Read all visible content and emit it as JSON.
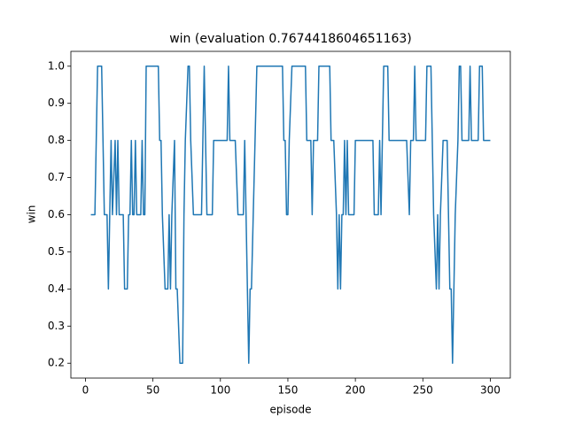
{
  "chart_data": {
    "type": "line",
    "title": "win (evaluation 0.7674418604651163)",
    "xlabel": "episode",
    "ylabel": "win",
    "color": "#1f77b4",
    "x": [
      4,
      7,
      8,
      9,
      12,
      13,
      14,
      16,
      17,
      18,
      19,
      20,
      22,
      23,
      24,
      25,
      26,
      28,
      29,
      31,
      32,
      33,
      34,
      35,
      36,
      37,
      38,
      41,
      42,
      43,
      44,
      45,
      54,
      55,
      56,
      57,
      59,
      61,
      62,
      63,
      64,
      66,
      67,
      68,
      70,
      72,
      73,
      74,
      76,
      77,
      78,
      80,
      86,
      87,
      88,
      89,
      90,
      94,
      95,
      105,
      106,
      107,
      111,
      113,
      117,
      118,
      119,
      121,
      122,
      123,
      127,
      146,
      147,
      148,
      149,
      150,
      151,
      153,
      163,
      164,
      167,
      168,
      169,
      172,
      173,
      181,
      182,
      184,
      186,
      187,
      188,
      189,
      190,
      191,
      192,
      193,
      194,
      195,
      199,
      200,
      213,
      214,
      217,
      218,
      219,
      220,
      221,
      224,
      225,
      238,
      240,
      241,
      243,
      244,
      245,
      252,
      253,
      256,
      257,
      258,
      260,
      261,
      262,
      263,
      265,
      268,
      270,
      271,
      272,
      274,
      276,
      277,
      278,
      279,
      284,
      285,
      286,
      291,
      292,
      294,
      295,
      300
    ],
    "values": [
      0.6,
      0.6,
      0.8,
      1,
      1,
      0.8,
      0.6,
      0.6,
      0.4,
      0.6,
      0.8,
      0.6,
      0.8,
      0.6,
      0.8,
      0.6,
      0.6,
      0.6,
      0.4,
      0.4,
      0.6,
      0.6,
      0.8,
      0.6,
      0.6,
      0.8,
      0.6,
      0.6,
      0.8,
      0.6,
      0.6,
      1,
      1,
      0.8,
      0.8,
      0.6,
      0.4,
      0.4,
      0.6,
      0.4,
      0.6,
      0.8,
      0.4,
      0.4,
      0.2,
      0.2,
      0.6,
      0.8,
      1,
      1,
      0.8,
      0.6,
      0.6,
      0.8,
      1,
      0.8,
      0.6,
      0.6,
      0.8,
      0.8,
      1,
      0.8,
      0.8,
      0.6,
      0.6,
      0.8,
      0.6,
      0.2,
      0.4,
      0.4,
      1,
      1,
      0.8,
      0.8,
      0.6,
      0.6,
      0.8,
      1,
      1,
      0.8,
      0.8,
      0.6,
      0.8,
      0.8,
      1,
      1,
      0.8,
      0.8,
      0.6,
      0.4,
      0.6,
      0.4,
      0.6,
      0.6,
      0.8,
      0.6,
      0.8,
      0.6,
      0.6,
      0.8,
      0.8,
      0.6,
      0.6,
      0.8,
      0.6,
      0.8,
      1,
      1,
      0.8,
      0.8,
      0.6,
      0.8,
      0.8,
      1,
      0.8,
      0.8,
      1,
      1,
      0.8,
      0.6,
      0.4,
      0.6,
      0.4,
      0.6,
      0.8,
      0.8,
      0.4,
      0.4,
      0.2,
      0.6,
      0.8,
      1,
      1,
      0.8,
      0.8,
      1,
      0.8,
      0.8,
      1,
      1,
      0.8,
      0.8
    ],
    "xlim": [
      -10.8,
      314.8
    ],
    "xticks": [
      0,
      50,
      100,
      150,
      200,
      250,
      300
    ],
    "ylim": [
      0.16,
      1.04
    ],
    "yticks": [
      0.2,
      0.3,
      0.4,
      0.5,
      0.6,
      0.7,
      0.8,
      0.9,
      {
        "value": 1,
        "label": "1.0"
      }
    ]
  }
}
